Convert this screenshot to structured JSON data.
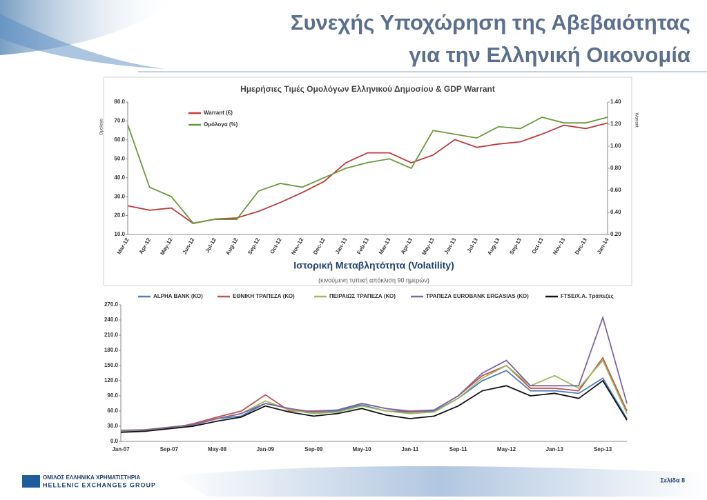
{
  "header": {
    "title_lines": [
      "Συνεχής Υποχώρηση της Αβεβαιότητας",
      "για την Ελληνική Οικονομία"
    ]
  },
  "footer": {
    "logo_line1": "ΟΜΙΛΟΣ ΕΛΛΗΝΙΚΑ ΧΡΗΜΑΤΙΣΤΗΡΙΑ",
    "logo_line2": "HELLENIC EXCHANGES GROUP",
    "page": "Σελίδα 8"
  },
  "chart_data": [
    {
      "type": "line",
      "title": "Ημερήσιες Τιμές Ομολόγων Ελληνικού Δημοσίου & GDP Warrant",
      "y_label": "Ομόλογο",
      "y2_label": "Warrant",
      "legend": "upper left",
      "grid": false,
      "categories": [
        "Mar-12",
        "Apr-12",
        "May-12",
        "Jun-12",
        "Jul-12",
        "Aug-12",
        "Sep-12",
        "Oct-12",
        "Nov-12",
        "Dec-12",
        "Jan-13",
        "Feb-13",
        "Mar-13",
        "Apr-13",
        "May-13",
        "Jun-13",
        "Jul-13",
        "Aug-13",
        "Sep-13",
        "Oct-13",
        "Nov-13",
        "Dec-13",
        "Jan-14"
      ],
      "series": [
        {
          "name": "Warrant (€)",
          "color": "#c0393b",
          "axis": "y2",
          "values": [
            0.46,
            0.42,
            0.44,
            0.3,
            0.34,
            0.35,
            0.41,
            0.49,
            0.58,
            0.68,
            0.85,
            0.94,
            0.94,
            0.85,
            0.92,
            1.06,
            0.99,
            1.02,
            1.04,
            1.11,
            1.19,
            1.16,
            1.21
          ]
        },
        {
          "name": "Ομόλογα (%)",
          "color": "#6a9a3a",
          "values": [
            68,
            35,
            30,
            16,
            18,
            18,
            33,
            37,
            35,
            40,
            45,
            48,
            50,
            45,
            65,
            63,
            61,
            67,
            66,
            72,
            69,
            69,
            72
          ]
        }
      ],
      "ylim": [
        10,
        80
      ],
      "yticks": [
        {
          "value": 10,
          "label": "10.0"
        },
        {
          "value": 20,
          "label": "20.0"
        },
        {
          "value": 30,
          "label": "30.0"
        },
        {
          "value": 40,
          "label": "40.0"
        },
        {
          "value": 50,
          "label": "50.0"
        },
        {
          "value": 60,
          "label": "60.0"
        },
        {
          "value": 70,
          "label": "70.0"
        },
        {
          "value": 80,
          "label": "80.0"
        }
      ],
      "y2lim": [
        0.2,
        1.4
      ],
      "y2ticks": [
        {
          "value": 0.2,
          "label": "0.20"
        },
        {
          "value": 0.4,
          "label": "0.40"
        },
        {
          "value": 0.6,
          "label": "0.60"
        },
        {
          "value": 0.8,
          "label": "0.80"
        },
        {
          "value": 1.0,
          "label": "1.00"
        },
        {
          "value": 1.2,
          "label": "1.20"
        },
        {
          "value": 1.4,
          "label": "1.40"
        }
      ]
    },
    {
      "type": "line",
      "title": "Ιστορική Μεταβλητότητα (Volatility)",
      "subtitle": "(κινούμενη τυπική απόκλιση 90 ημερών)",
      "legend": "top",
      "grid": false,
      "categories": [
        "Jan-07",
        null,
        "Sep-07",
        null,
        "May-08",
        null,
        "Jan-09",
        null,
        "Sep-09",
        null,
        "May-10",
        null,
        "Jan-11",
        null,
        "Sep-11",
        null,
        "May-12",
        null,
        "Jan-13",
        null,
        "Sep-13",
        null
      ],
      "series": [
        {
          "name": "ALPHA BANK (ΚΟ)",
          "color": "#4a7ebb",
          "values": [
            20,
            22,
            28,
            32,
            45,
            50,
            75,
            65,
            55,
            60,
            72,
            60,
            58,
            60,
            85,
            120,
            140,
            100,
            100,
            95,
            125,
            45
          ]
        },
        {
          "name": "ΕΘΝΙΚΗ ΤΡΑΠΕΖΑ (ΚΟ)",
          "color": "#c0504d",
          "values": [
            20,
            22,
            25,
            35,
            48,
            60,
            92,
            60,
            60,
            62,
            75,
            65,
            58,
            62,
            90,
            130,
            150,
            105,
            105,
            100,
            165,
            60
          ]
        },
        {
          "name": "ΠΕΙΡΑΙΩΣ ΤΡΑΠΕΖΑ (ΚΟ)",
          "color": "#9bbb59",
          "values": [
            20,
            21,
            25,
            33,
            45,
            55,
            80,
            62,
            55,
            58,
            70,
            60,
            55,
            58,
            85,
            125,
            150,
            110,
            130,
            105,
            160,
            55
          ]
        },
        {
          "name": "ΤΡΑΠΕΖΑ EUROBANK ERGASIAS (ΚΟ)",
          "color": "#8064a2",
          "values": [
            22,
            23,
            28,
            33,
            45,
            55,
            75,
            65,
            58,
            62,
            75,
            65,
            60,
            62,
            90,
            135,
            160,
            110,
            110,
            110,
            245,
            75
          ]
        },
        {
          "name": "FTSE/Χ.Α. Τράπεζες",
          "color": "#111111",
          "values": [
            18,
            20,
            25,
            30,
            40,
            48,
            70,
            58,
            50,
            55,
            65,
            52,
            45,
            50,
            70,
            100,
            110,
            90,
            95,
            85,
            120,
            42
          ]
        }
      ],
      "ylim": [
        0,
        270
      ],
      "yticks": [
        {
          "value": 0,
          "label": "0.0"
        },
        {
          "value": 30,
          "label": "30.0"
        },
        {
          "value": 60,
          "label": "60.0"
        },
        {
          "value": 90,
          "label": "90.0"
        },
        {
          "value": 120,
          "label": "120.0"
        },
        {
          "value": 150,
          "label": "150.0"
        },
        {
          "value": 180,
          "label": "180.0"
        },
        {
          "value": 210,
          "label": "210.0"
        },
        {
          "value": 240,
          "label": "240.0"
        },
        {
          "value": 270,
          "label": "270.0"
        }
      ]
    }
  ]
}
